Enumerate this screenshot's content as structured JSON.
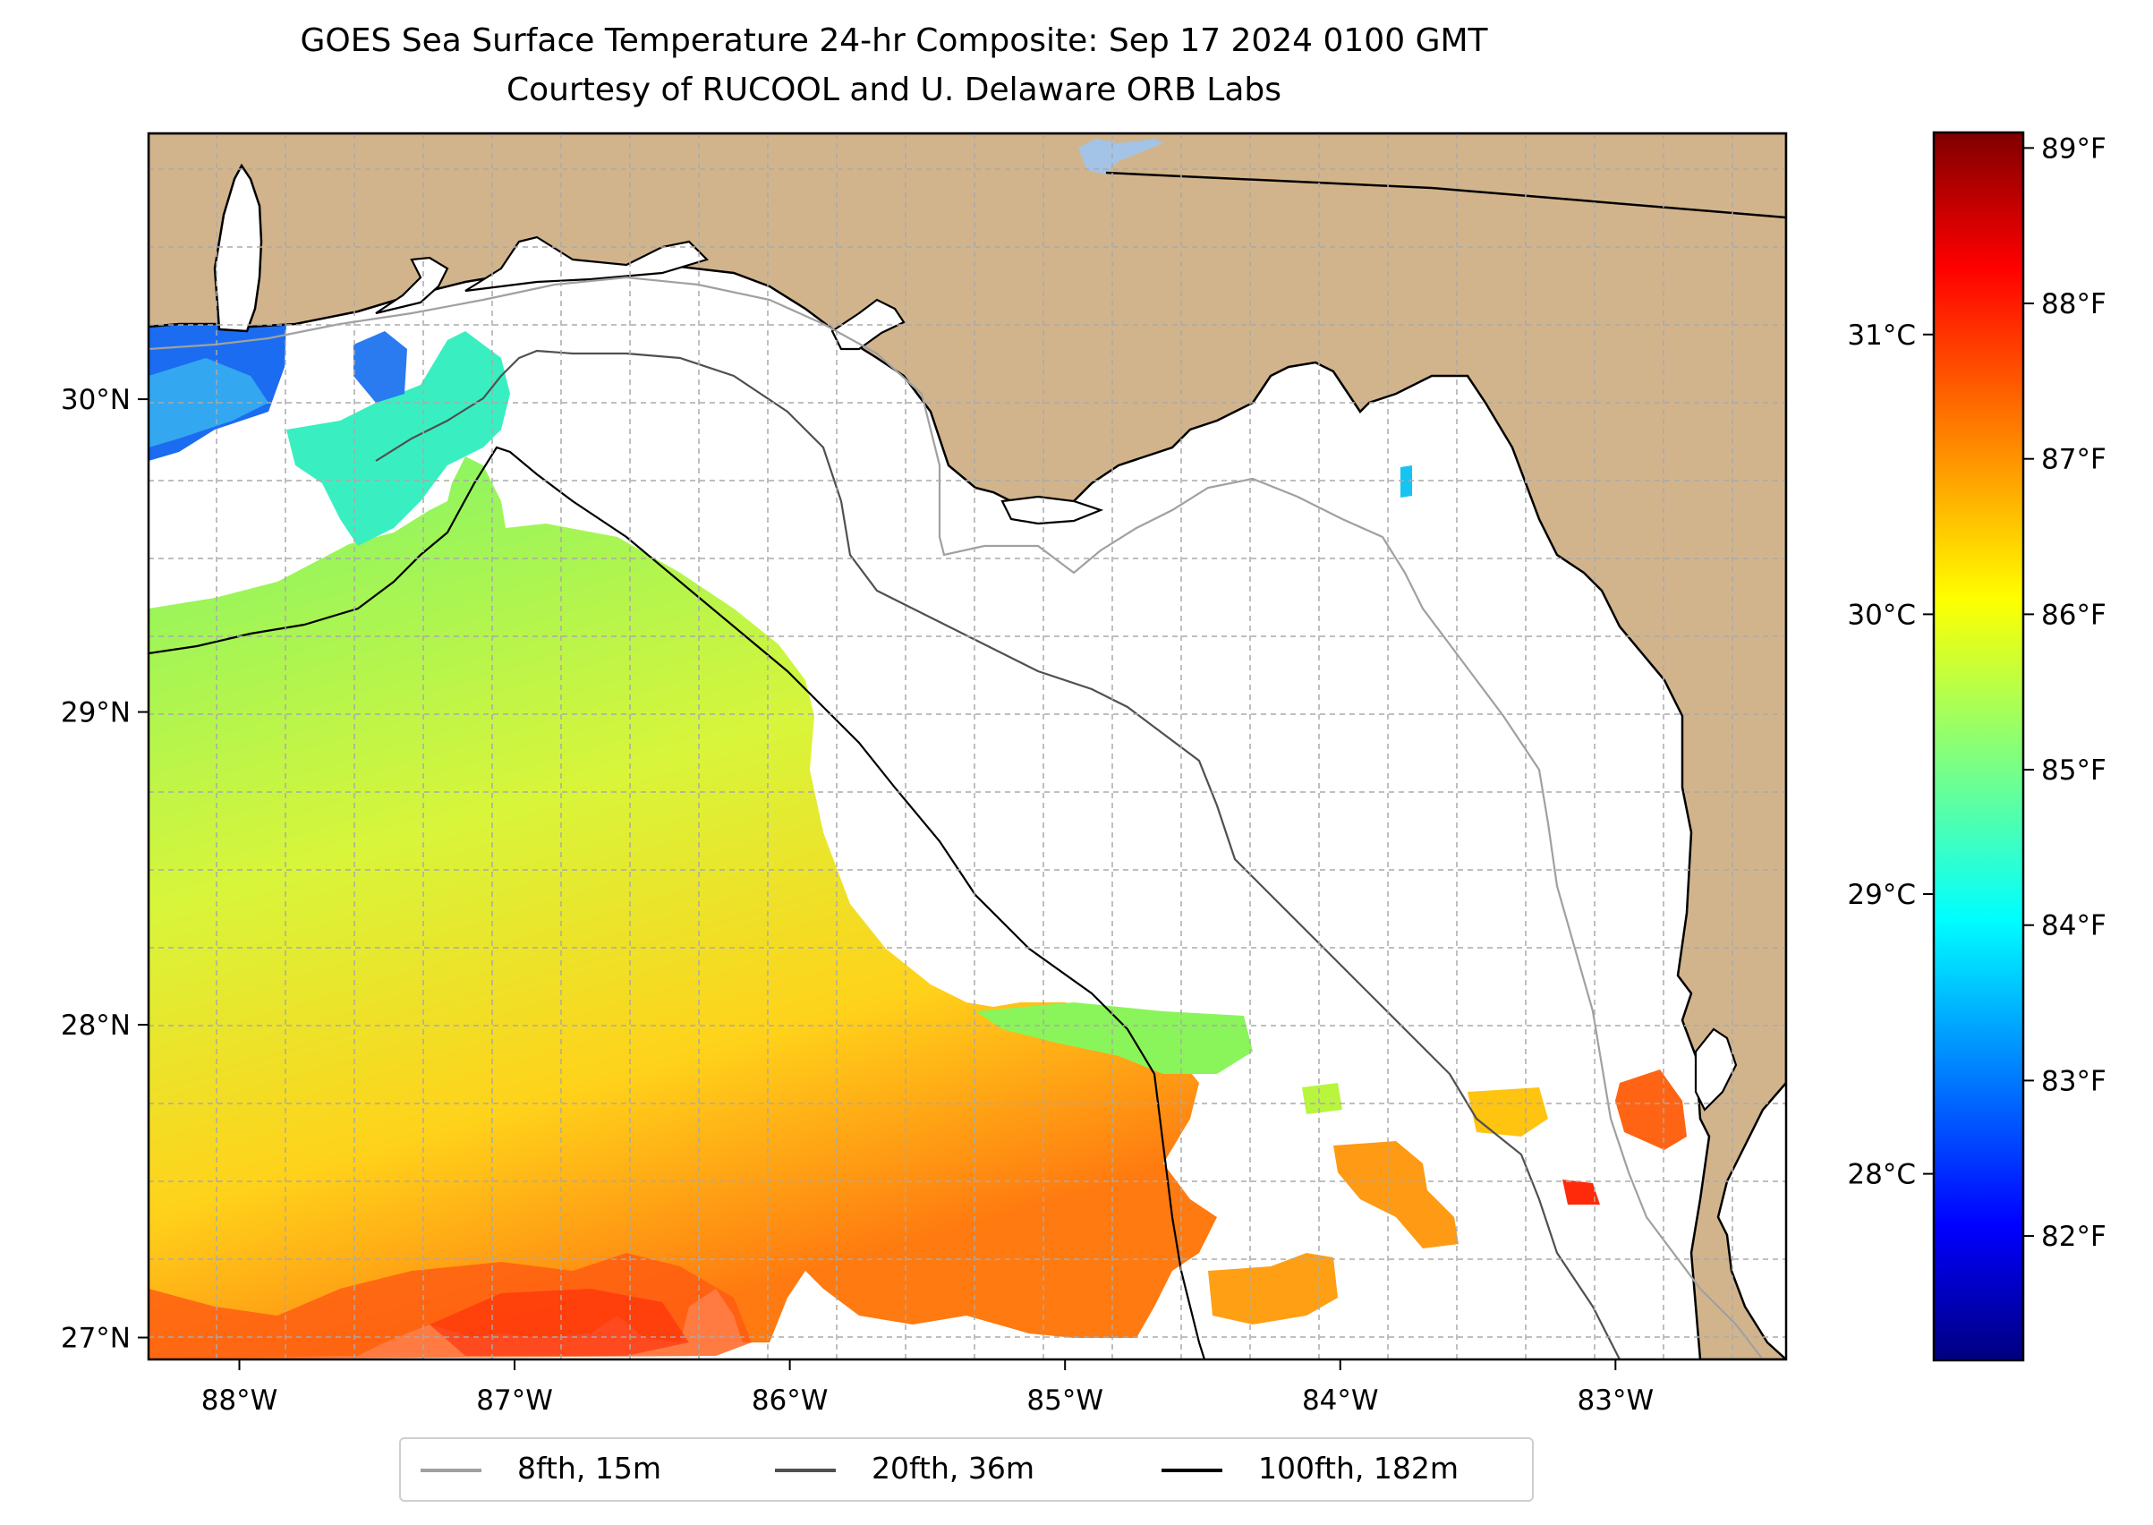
{
  "title": {
    "line1": "GOES Sea Surface Temperature 24-hr Composite: Sep 17 2024 0100 GMT",
    "line2": "Courtesy of RUCOOL and U. Delaware ORB Labs"
  },
  "map": {
    "lon_range": [
      -88.33,
      -82.38
    ],
    "lat_range": [
      26.93,
      30.85
    ],
    "land_color": "#d2b48c",
    "ocean_color": "#ffffff",
    "x_tick_labels": [
      "88°W",
      "87°W",
      "86°W",
      "85°W",
      "84°W",
      "83°W"
    ],
    "x_tick_values": [
      -88,
      -87,
      -86,
      -85,
      -84,
      -83
    ],
    "y_tick_labels": [
      "27°N",
      "28°N",
      "29°N",
      "30°N"
    ],
    "y_tick_values": [
      27,
      28,
      29,
      30
    ],
    "gridlines": true
  },
  "colorbar": {
    "colormap": "jet",
    "range_f": [
      81.2,
      89.1
    ],
    "f_labels": [
      "82°F",
      "83°F",
      "84°F",
      "85°F",
      "86°F",
      "87°F",
      "88°F",
      "89°F"
    ],
    "f_values": [
      82,
      83,
      84,
      85,
      86,
      87,
      88,
      89
    ],
    "c_labels": [
      "28°C",
      "29°C",
      "30°C",
      "31°C"
    ],
    "c_values": [
      28,
      29,
      30,
      31
    ]
  },
  "legend": {
    "placement": "bottom-center",
    "items": [
      {
        "label": "8fth, 15m",
        "color": "#a0a0a0"
      },
      {
        "label": "20fth, 36m",
        "color": "#505050"
      },
      {
        "label": "100fth, 182m",
        "color": "#000000"
      }
    ]
  }
}
